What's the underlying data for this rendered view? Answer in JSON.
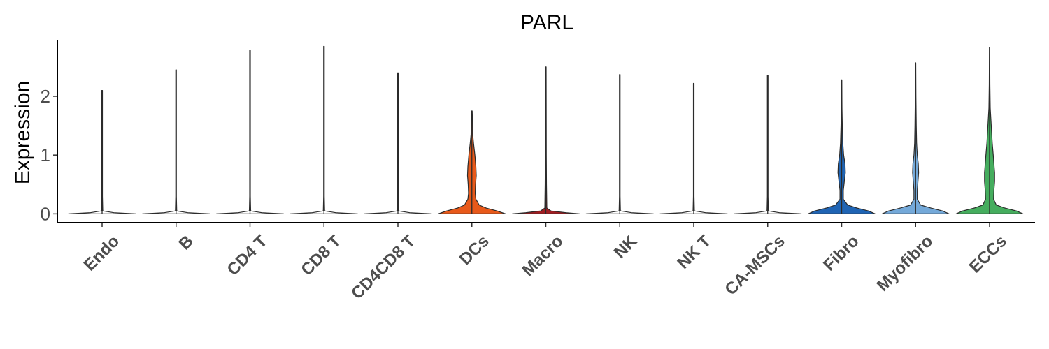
{
  "chart_data": {
    "type": "violin",
    "title": "PARL",
    "xlabel": "",
    "ylabel": "Expression",
    "ylim": [
      -0.15,
      2.95
    ],
    "yticks": [
      0,
      1,
      2
    ],
    "grid": false,
    "legend": "none",
    "categories": [
      "Endo",
      "B",
      "CD4 T",
      "CD8 T",
      "CD4CD8 T",
      "DCs",
      "Macro",
      "NK",
      "NK T",
      "CA-MSCs",
      "Fibro",
      "Myofibro",
      "ECCs"
    ],
    "series": [
      {
        "category": "Endo",
        "max": 2.1,
        "color": "#ffffff",
        "density": [
          [
            0,
            1.0
          ],
          [
            0.02,
            0.35
          ],
          [
            0.05,
            0.02
          ],
          [
            0.3,
            0.01
          ],
          [
            2.1,
            0.01
          ]
        ]
      },
      {
        "category": "B",
        "max": 2.45,
        "color": "#ffffff",
        "density": [
          [
            0,
            1.0
          ],
          [
            0.02,
            0.35
          ],
          [
            0.05,
            0.02
          ],
          [
            0.3,
            0.01
          ],
          [
            2.45,
            0.01
          ]
        ]
      },
      {
        "category": "CD4 T",
        "max": 2.78,
        "color": "#ffffff",
        "density": [
          [
            0,
            1.0
          ],
          [
            0.02,
            0.35
          ],
          [
            0.05,
            0.02
          ],
          [
            0.3,
            0.01
          ],
          [
            2.78,
            0.01
          ]
        ]
      },
      {
        "category": "CD8 T",
        "max": 2.85,
        "color": "#ffffff",
        "density": [
          [
            0,
            1.0
          ],
          [
            0.02,
            0.35
          ],
          [
            0.05,
            0.02
          ],
          [
            0.3,
            0.01
          ],
          [
            2.85,
            0.01
          ]
        ]
      },
      {
        "category": "CD4CD8 T",
        "max": 2.4,
        "color": "#ffffff",
        "density": [
          [
            0,
            1.0
          ],
          [
            0.02,
            0.35
          ],
          [
            0.05,
            0.02
          ],
          [
            0.3,
            0.01
          ],
          [
            2.4,
            0.01
          ]
        ]
      },
      {
        "category": "DCs",
        "max": 1.75,
        "color": "#e8591a",
        "density": [
          [
            0,
            1.0
          ],
          [
            0.05,
            0.75
          ],
          [
            0.1,
            0.42
          ],
          [
            0.15,
            0.22
          ],
          [
            0.25,
            0.12
          ],
          [
            0.35,
            0.1
          ],
          [
            0.5,
            0.11
          ],
          [
            0.65,
            0.13
          ],
          [
            0.8,
            0.12
          ],
          [
            1.0,
            0.09
          ],
          [
            1.2,
            0.05
          ],
          [
            1.35,
            0.025
          ],
          [
            1.55,
            0.02
          ],
          [
            1.75,
            0.01
          ]
        ]
      },
      {
        "category": "Macro",
        "max": 2.5,
        "color": "#a11d21",
        "density": [
          [
            0,
            1.0
          ],
          [
            0.02,
            0.6
          ],
          [
            0.05,
            0.15
          ],
          [
            0.1,
            0.03
          ],
          [
            0.5,
            0.02
          ],
          [
            1.0,
            0.015
          ],
          [
            2.5,
            0.01
          ]
        ]
      },
      {
        "category": "NK",
        "max": 2.37,
        "color": "#ffffff",
        "density": [
          [
            0,
            1.0
          ],
          [
            0.02,
            0.35
          ],
          [
            0.05,
            0.02
          ],
          [
            0.3,
            0.01
          ],
          [
            2.37,
            0.01
          ]
        ]
      },
      {
        "category": "NK T",
        "max": 2.22,
        "color": "#ffffff",
        "density": [
          [
            0,
            1.0
          ],
          [
            0.02,
            0.35
          ],
          [
            0.05,
            0.02
          ],
          [
            0.3,
            0.01
          ],
          [
            2.22,
            0.01
          ]
        ]
      },
      {
        "category": "CA-MSCs",
        "max": 2.36,
        "color": "#ffffff",
        "density": [
          [
            0,
            1.0
          ],
          [
            0.02,
            0.35
          ],
          [
            0.05,
            0.02
          ],
          [
            0.3,
            0.01
          ],
          [
            2.36,
            0.01
          ]
        ]
      },
      {
        "category": "Fibro",
        "max": 2.28,
        "color": "#1f64b4",
        "density": [
          [
            0,
            1.0
          ],
          [
            0.05,
            0.8
          ],
          [
            0.1,
            0.45
          ],
          [
            0.15,
            0.18
          ],
          [
            0.25,
            0.05
          ],
          [
            0.4,
            0.05
          ],
          [
            0.55,
            0.08
          ],
          [
            0.7,
            0.11
          ],
          [
            0.85,
            0.1
          ],
          [
            1.0,
            0.06
          ],
          [
            1.2,
            0.035
          ],
          [
            1.5,
            0.02
          ],
          [
            1.8,
            0.01
          ],
          [
            2.28,
            0.005
          ]
        ]
      },
      {
        "category": "Myofibro",
        "max": 2.57,
        "color": "#74a9d9",
        "density": [
          [
            0,
            1.0
          ],
          [
            0.05,
            0.8
          ],
          [
            0.1,
            0.45
          ],
          [
            0.15,
            0.15
          ],
          [
            0.25,
            0.05
          ],
          [
            0.4,
            0.05
          ],
          [
            0.55,
            0.07
          ],
          [
            0.7,
            0.09
          ],
          [
            0.85,
            0.08
          ],
          [
            1.0,
            0.05
          ],
          [
            1.2,
            0.03
          ],
          [
            1.5,
            0.02
          ],
          [
            2.0,
            0.01
          ],
          [
            2.57,
            0.005
          ]
        ]
      },
      {
        "category": "ECCs",
        "max": 2.83,
        "color": "#45ad5e",
        "density": [
          [
            0,
            1.0
          ],
          [
            0.05,
            0.8
          ],
          [
            0.1,
            0.45
          ],
          [
            0.15,
            0.2
          ],
          [
            0.25,
            0.12
          ],
          [
            0.4,
            0.13
          ],
          [
            0.55,
            0.15
          ],
          [
            0.7,
            0.15
          ],
          [
            0.85,
            0.13
          ],
          [
            1.0,
            0.11
          ],
          [
            1.2,
            0.08
          ],
          [
            1.4,
            0.06
          ],
          [
            1.6,
            0.04
          ],
          [
            1.8,
            0.02
          ],
          [
            2.2,
            0.01
          ],
          [
            2.83,
            0.005
          ]
        ]
      }
    ]
  }
}
